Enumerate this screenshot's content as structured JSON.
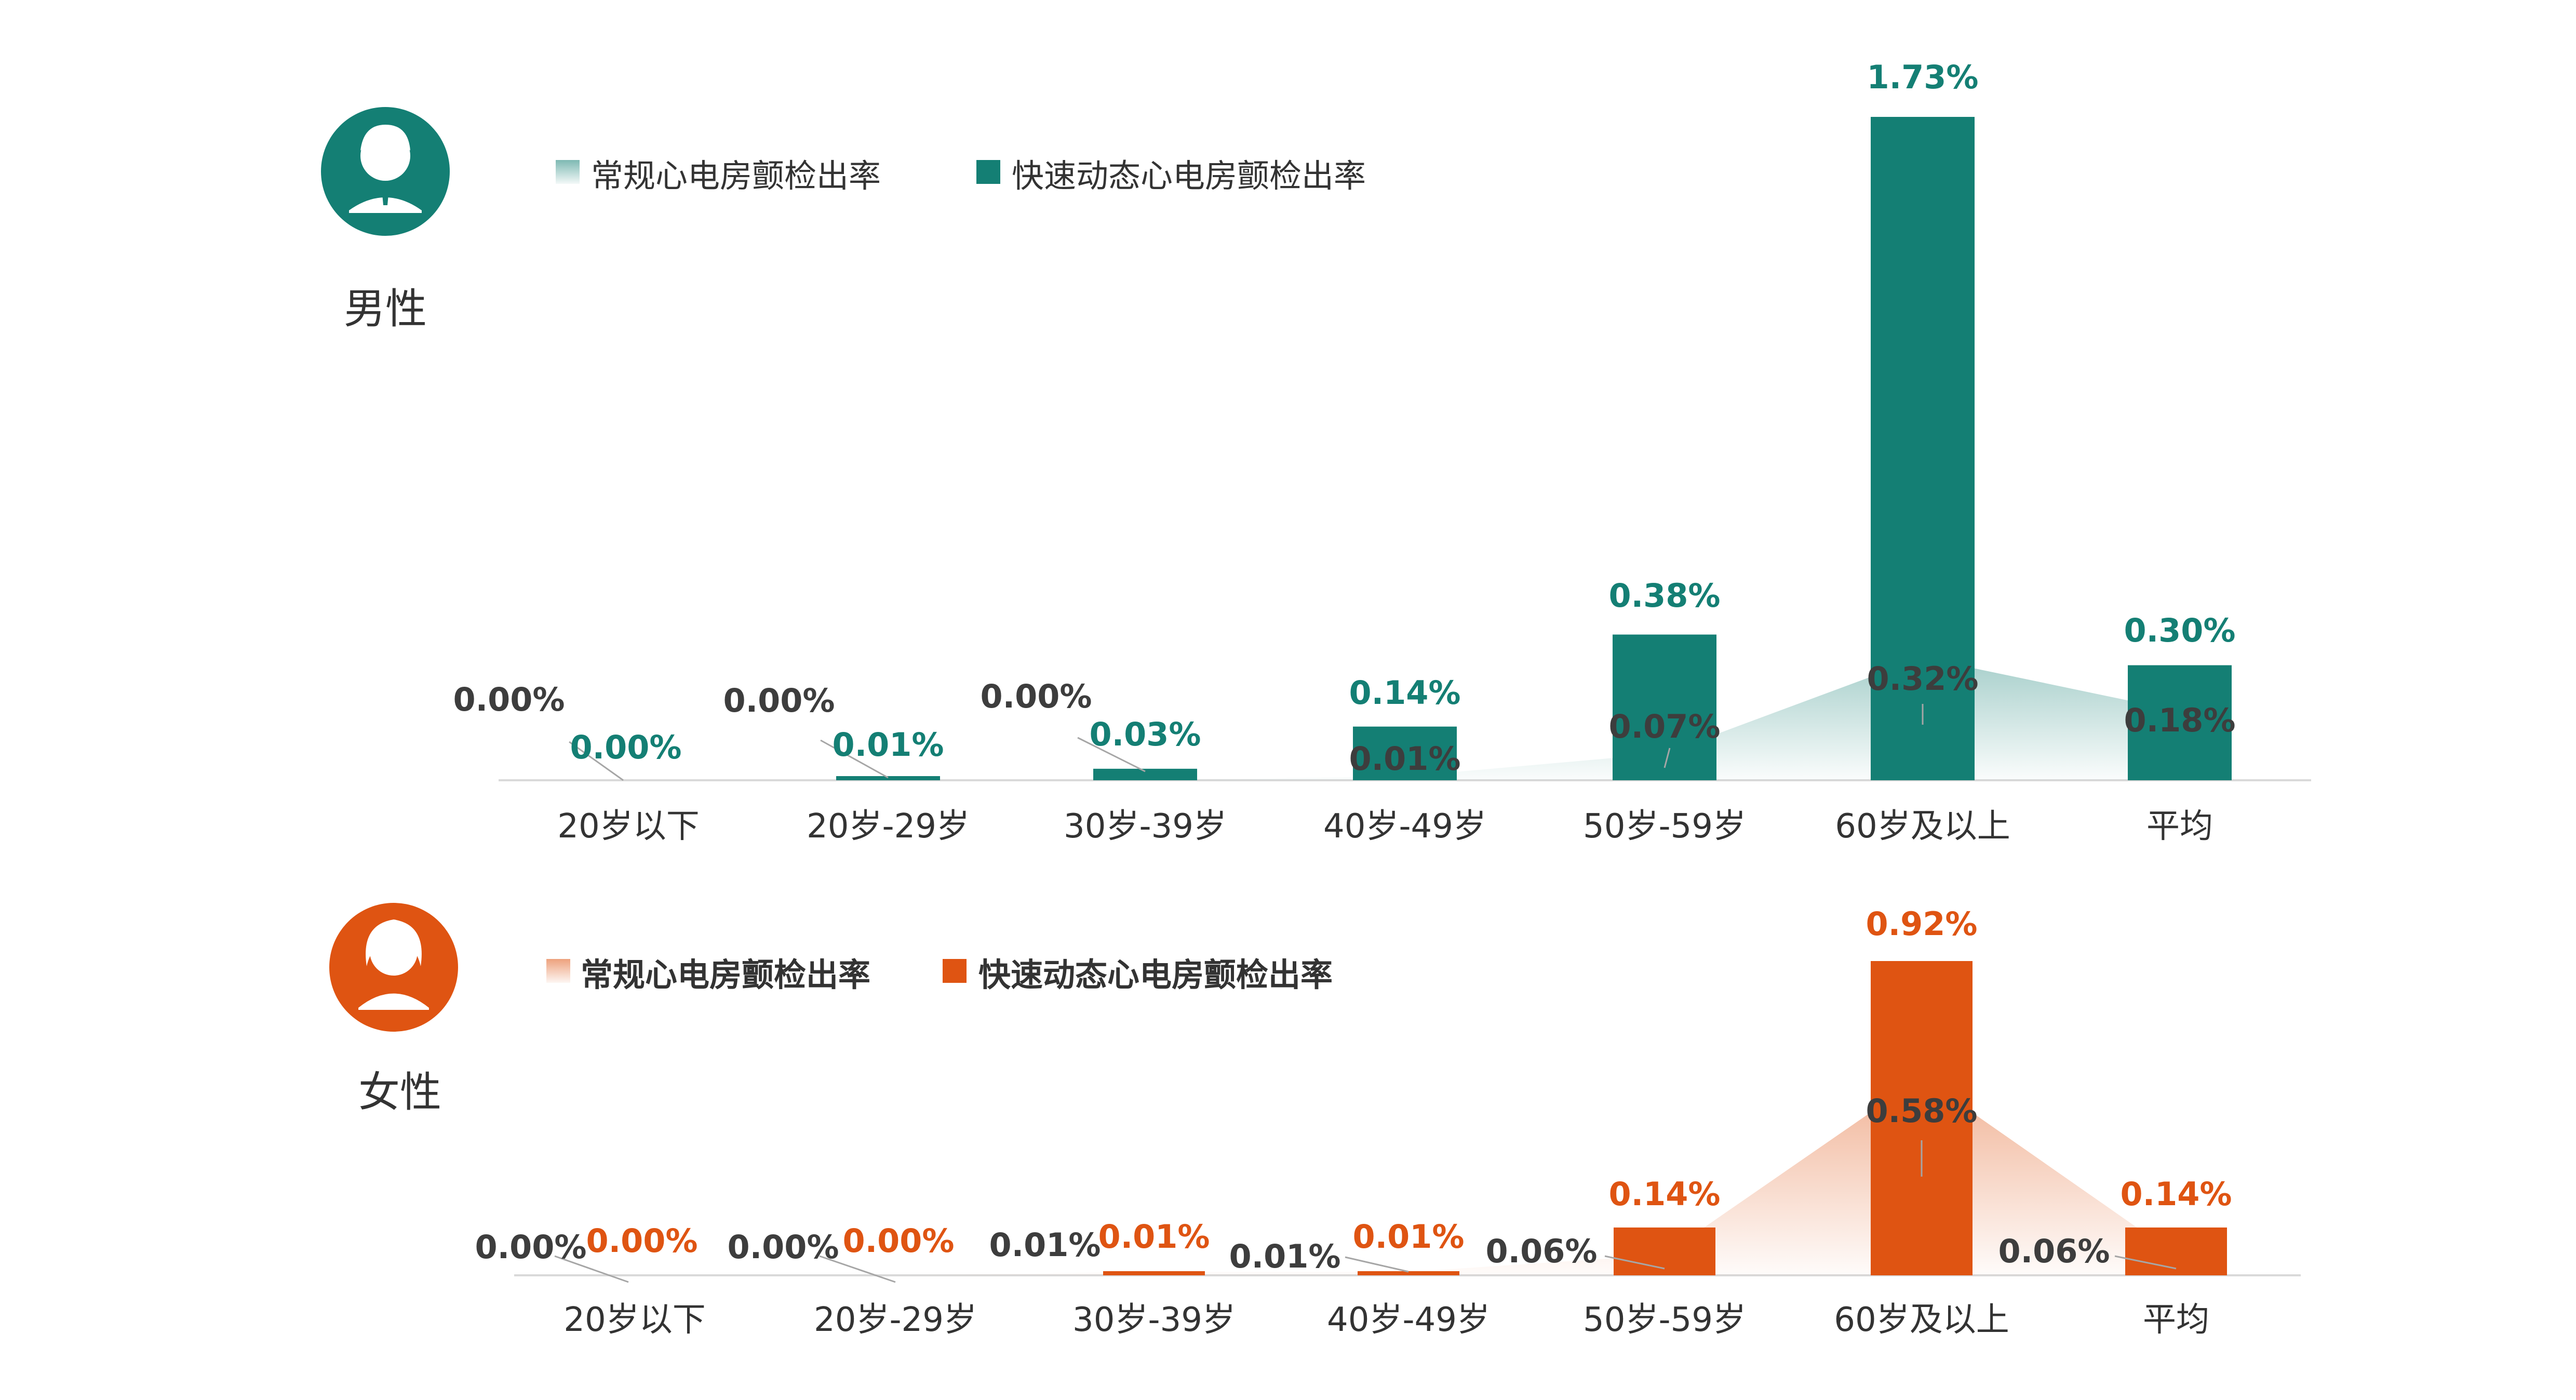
{
  "chart_data": [
    {
      "type": "bar",
      "gender_label": "男性",
      "avatar_icon": "male-avatar-icon",
      "colors": {
        "rapid": "#147f74",
        "routine": "#bfe0d8",
        "value_routine": "#3d3d3d"
      },
      "series": [
        {
          "name": "常规心电房颤检出率",
          "render": "area",
          "values": [
            0.0,
            0.0,
            0.0,
            0.01,
            0.07,
            0.32,
            0.18
          ],
          "labels": [
            "0.00%",
            "0.00%",
            "0.00%",
            "0.01%",
            "0.07%",
            "0.32%",
            "0.18%"
          ]
        },
        {
          "name": "快速动态心电房颤检出率",
          "render": "bar",
          "values": [
            0.0,
            0.01,
            0.03,
            0.14,
            0.38,
            1.73,
            0.3
          ],
          "labels": [
            "0.00%",
            "0.01%",
            "0.03%",
            "0.14%",
            "0.38%",
            "1.73%",
            "0.30%"
          ]
        }
      ],
      "categories": [
        "20岁以下",
        "20岁-29岁",
        "30岁-39岁",
        "40岁-49岁",
        "50岁-59岁",
        "60岁及以上",
        "平均"
      ],
      "unit": "%",
      "ylim": [
        0,
        1.73
      ],
      "legend_position": "top-left",
      "legend_bold": false,
      "grid": false
    },
    {
      "type": "bar",
      "gender_label": "女性",
      "avatar_icon": "female-avatar-icon",
      "colors": {
        "rapid": "#df5412",
        "routine": "#f3c7ad",
        "value_routine": "#3d3d3d"
      },
      "series": [
        {
          "name": "常规心电房颤检出率",
          "render": "area",
          "values": [
            0.0,
            0.0,
            0.01,
            0.01,
            0.06,
            0.58,
            0.06
          ],
          "labels": [
            "0.00%",
            "0.00%",
            "0.01%",
            "0.01%",
            "0.06%",
            "0.58%",
            "0.06%"
          ]
        },
        {
          "name": "快速动态心电房颤检出率",
          "render": "bar",
          "values": [
            0.0,
            0.0,
            0.01,
            0.01,
            0.14,
            0.92,
            0.14
          ],
          "labels": [
            "0.00%",
            "0.00%",
            "0.01%",
            "0.01%",
            "0.14%",
            "0.92%",
            "0.14%"
          ]
        }
      ],
      "categories": [
        "20岁以下",
        "20岁-29岁",
        "30岁-39岁",
        "40岁-49岁",
        "50岁-59岁",
        "60岁及以上",
        "平均"
      ],
      "unit": "%",
      "ylim": [
        0,
        0.92
      ],
      "legend_position": "top-left",
      "legend_bold": true,
      "grid": false
    }
  ]
}
